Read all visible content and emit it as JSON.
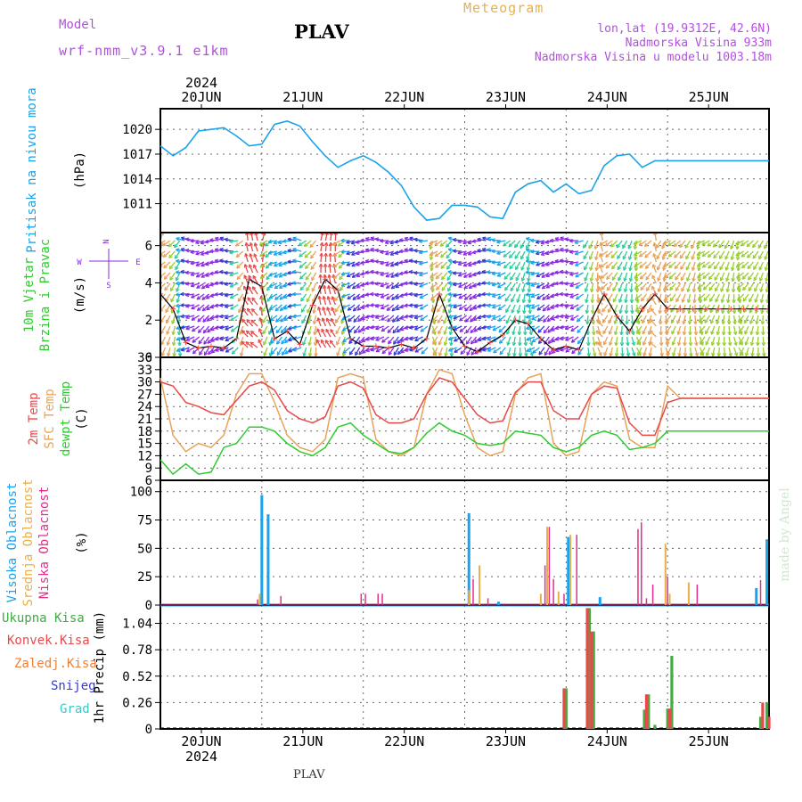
{
  "header": {
    "model_label": "Model",
    "model_name": "wrf-nmm_v3.9.1 e1km",
    "station": "PLAV",
    "product": "Meteogram",
    "lonlat": "lon,lat (19.9312E, 42.6N)",
    "altitude": "Nadmorska Visina 933m",
    "model_altitude": "Nadmorska Visina u modelu 1003.18m",
    "year": "2024",
    "footer_station": "PLAV",
    "watermark": "made by Angel"
  },
  "colors": {
    "pressure": "#1aa3ea",
    "temp2m": "#e84a4a",
    "sfc": "#e8a35a",
    "dew": "#2ecc2e",
    "high_cloud": "#1aa3ea",
    "mid_cloud": "#e8b04a",
    "low_cloud": "#e0308a",
    "total_precip": "#44aa44",
    "conv_precip": "#e84a4a",
    "strat_precip": "#e8803a",
    "snow": "#3a3ad0",
    "hail": "#3ac8c8",
    "wind_purple": "#8a2be2"
  },
  "chart_data": [
    {
      "type": "line",
      "name": "pressure",
      "title": "Pritisak na nivou mora",
      "ylabel": "(hPa)",
      "ylim": [
        1007.5,
        1022.5
      ],
      "yticks": [
        1011,
        1014,
        1017,
        1020
      ],
      "xlim": [
        0,
        144
      ],
      "x_ticklabels_top": [
        "20JUN",
        "21JUN",
        "22JUN",
        "23JUN",
        "24JUN",
        "25JUN"
      ],
      "x": [
        0,
        3,
        6,
        9,
        12,
        15,
        18,
        21,
        24,
        27,
        30,
        33,
        36,
        39,
        42,
        45,
        48,
        51,
        54,
        57,
        60,
        63,
        66,
        69,
        72,
        75,
        78,
        81,
        84,
        87,
        90,
        93,
        96,
        99,
        102,
        105,
        108,
        111,
        114,
        117,
        120,
        123,
        126,
        129,
        132,
        135,
        138,
        141,
        144
      ],
      "series": [
        {
          "values": [
            1018,
            1016.8,
            1017.8,
            1019.8,
            1020,
            1020.2,
            1019.2,
            1018,
            1018.2,
            1020.6,
            1021,
            1020.4,
            1018.5,
            1016.8,
            1015.4,
            1016.2,
            1016.8,
            1016,
            1014.8,
            1013.2,
            1010.6,
            1009,
            1009.2,
            1010.8,
            1010.8,
            1010.6,
            1009.4,
            1009.2,
            1012.4,
            1013.4,
            1013.8,
            1012.4,
            1013.4,
            1012.2,
            1012.6,
            1015.6,
            1016.8,
            1017,
            1015.4,
            1016.2,
            1016.2,
            1016.2,
            1016.2,
            1016.2,
            1016.2,
            1016.2,
            1016.2,
            1016.2,
            1016.2
          ]
        }
      ]
    },
    {
      "type": "line",
      "name": "wind",
      "title": "10m Vjetar Brzina i Pravac",
      "ylabel": "(m/s)",
      "ylim": [
        0,
        6.7
      ],
      "yticks": [
        0,
        2,
        4,
        6
      ],
      "xlim": [
        0,
        144
      ],
      "compass": {
        "n": "N",
        "s": "S",
        "e": "E",
        "w": "W"
      },
      "x": [
        0,
        3,
        6,
        9,
        12,
        15,
        18,
        21,
        24,
        27,
        30,
        33,
        36,
        39,
        42,
        45,
        48,
        51,
        54,
        57,
        60,
        63,
        66,
        69,
        72,
        75,
        78,
        81,
        84,
        87,
        90,
        93,
        96,
        99,
        102,
        105,
        108,
        111,
        114,
        117,
        120,
        123,
        126,
        129,
        132,
        135,
        138,
        141,
        144
      ],
      "series": [
        {
          "values": [
            3.4,
            2.6,
            0.8,
            0.5,
            0.6,
            0.5,
            1.0,
            4.2,
            3.8,
            1.0,
            1.4,
            0.7,
            2.8,
            4.2,
            3.6,
            1.0,
            0.6,
            0.6,
            0.5,
            0.7,
            0.5,
            1.0,
            3.4,
            1.6,
            0.6,
            0.3,
            0.8,
            1.2,
            2.0,
            1.8,
            1.0,
            0.4,
            0.6,
            0.4,
            2.0,
            3.4,
            2.2,
            1.4,
            2.6,
            3.4,
            2.6,
            2.6,
            2.6,
            2.6,
            2.6,
            2.6,
            2.6,
            2.6,
            2.6
          ]
        }
      ]
    },
    {
      "type": "line",
      "name": "temperature",
      "ylabel": "(C)",
      "ylim": [
        6,
        36
      ],
      "yticks": [
        6,
        9,
        12,
        15,
        18,
        21,
        24,
        27,
        30,
        33,
        36
      ],
      "xlim": [
        0,
        144
      ],
      "x": [
        0,
        3,
        6,
        9,
        12,
        15,
        18,
        21,
        24,
        27,
        30,
        33,
        36,
        39,
        42,
        45,
        48,
        51,
        54,
        57,
        60,
        63,
        66,
        69,
        72,
        75,
        78,
        81,
        84,
        87,
        90,
        93,
        96,
        99,
        102,
        105,
        108,
        111,
        114,
        117,
        120,
        123,
        126,
        129,
        132,
        135,
        138,
        141,
        144
      ],
      "series": [
        {
          "name": "2m Temp",
          "values": [
            30,
            29,
            25,
            24,
            22.5,
            22,
            25.5,
            29,
            30,
            28,
            23,
            21,
            20,
            21.5,
            29,
            30,
            28.5,
            22,
            20,
            20,
            21,
            27,
            31,
            30,
            26,
            22,
            20,
            20.5,
            27.5,
            30,
            30,
            23,
            21,
            21,
            27,
            29,
            28.5,
            20,
            17,
            17,
            25,
            26,
            26,
            26,
            26,
            26,
            26,
            26,
            26
          ]
        },
        {
          "name": "SFC Temp",
          "values": [
            31,
            17,
            13,
            15,
            14,
            17,
            27,
            32,
            32,
            25,
            17,
            14,
            13,
            16,
            31,
            32,
            31,
            16,
            13,
            12,
            14,
            27,
            33,
            32,
            22,
            14,
            12,
            13,
            27,
            31,
            32,
            15,
            12,
            13,
            27,
            30,
            29,
            16,
            14,
            14,
            29,
            26,
            26,
            26,
            26,
            26,
            26,
            26,
            26
          ]
        },
        {
          "name": "dewpt Temp",
          "values": [
            11,
            7.5,
            10,
            7.5,
            8,
            14,
            15,
            19,
            19,
            18,
            15,
            13,
            12,
            14,
            19,
            20,
            17,
            15,
            13,
            12.5,
            14,
            17.5,
            20,
            18,
            17,
            15,
            14.5,
            15,
            18,
            17.5,
            17,
            14,
            13,
            14,
            17,
            18,
            17,
            13.5,
            14,
            15,
            18,
            18,
            18,
            18,
            18,
            18,
            18,
            18,
            18
          ]
        }
      ]
    },
    {
      "type": "bar",
      "name": "cloudiness",
      "ylabel": "(%)",
      "ylim": [
        0,
        110
      ],
      "yticks": [
        0,
        25,
        50,
        75,
        100
      ],
      "xlim": [
        0,
        144
      ],
      "series": [
        {
          "name": "Visoka Oblacnost",
          "bars": [
            [
              24,
              97
            ],
            [
              25.5,
              80
            ],
            [
              73,
              81
            ],
            [
              80,
              3
            ],
            [
              96.5,
              60
            ],
            [
              104,
              7
            ],
            [
              141,
              15
            ],
            [
              143.5,
              58
            ]
          ]
        },
        {
          "name": "Srednja Oblacnost",
          "bars": [
            [
              23.5,
              10
            ],
            [
              73,
              13
            ],
            [
              75.5,
              35
            ],
            [
              90,
              10
            ],
            [
              91.5,
              69
            ],
            [
              94.2,
              12
            ],
            [
              97,
              62
            ],
            [
              119.5,
              54
            ],
            [
              120.5,
              10
            ],
            [
              125,
              20
            ]
          ]
        },
        {
          "name": "Niska Oblacnost",
          "bars": [
            [
              23,
              5
            ],
            [
              28.5,
              8
            ],
            [
              47.5,
              10
            ],
            [
              48.5,
              10
            ],
            [
              51.5,
              10
            ],
            [
              52.5,
              10
            ],
            [
              74,
              23
            ],
            [
              77.5,
              6
            ],
            [
              91,
              35
            ],
            [
              92,
              69
            ],
            [
              93,
              23
            ],
            [
              95.5,
              10
            ],
            [
              98.5,
              62
            ],
            [
              113,
              67
            ],
            [
              113.8,
              73
            ],
            [
              115,
              6
            ],
            [
              116.5,
              18
            ],
            [
              120,
              25
            ],
            [
              127,
              18
            ],
            [
              142,
              22
            ]
          ]
        }
      ]
    },
    {
      "type": "bar",
      "name": "precipitation",
      "ylabel": "1hr Precip (mm)",
      "ylim": [
        0,
        1.22
      ],
      "yticks": [
        0,
        0.26,
        0.52,
        0.78,
        1.04
      ],
      "xlim": [
        0,
        144
      ],
      "x_ticklabels_bottom": [
        "20JUN",
        "21JUN",
        "22JUN",
        "23JUN",
        "24JUN",
        "25JUN"
      ],
      "series": [
        {
          "name": "Ukupna Kisa",
          "bars": [
            [
              96,
              0.4
            ],
            [
              101.5,
              1.19
            ],
            [
              102.5,
              0.96
            ],
            [
              114.5,
              0.19
            ],
            [
              115.5,
              0.34
            ],
            [
              117,
              0.04
            ],
            [
              120,
              0.2
            ],
            [
              121,
              0.72
            ],
            [
              142,
              0.12
            ],
            [
              143.5,
              0.26
            ]
          ]
        },
        {
          "name": "Konvek.Kisa",
          "bars": [
            [
              95.5,
              0.4
            ],
            [
              101,
              1.19
            ],
            [
              102,
              0.96
            ],
            [
              115,
              0.34
            ],
            [
              120.5,
              0.2
            ],
            [
              142.5,
              0.26
            ],
            [
              144,
              0.12
            ]
          ]
        },
        {
          "name": "Zaledj.Kisa",
          "bars": []
        },
        {
          "name": "Snijeg",
          "bars": []
        },
        {
          "name": "Grad",
          "bars": []
        }
      ]
    }
  ]
}
